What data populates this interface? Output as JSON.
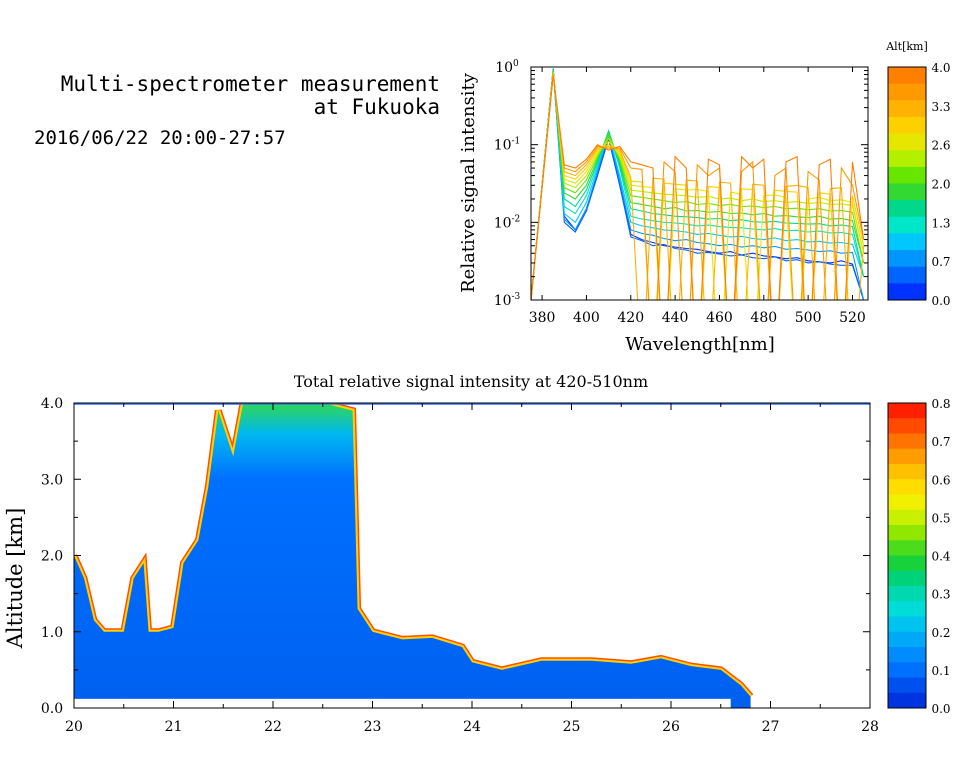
{
  "header": {
    "title_line1": "Multi-spectrometer measurement",
    "title_line2": "at Fukuoka",
    "datetime": "2016/06/22 20:00-27:57"
  },
  "chart_data": [
    {
      "type": "line",
      "title": "",
      "xlabel": "Wavelength[nm]",
      "ylabel": "Relative signal intensity",
      "xlim": [
        375,
        527
      ],
      "ylim": [
        0.001,
        1
      ],
      "yscale": "log",
      "xticks": [
        380,
        400,
        420,
        440,
        460,
        480,
        500,
        520
      ],
      "yticks": [
        {
          "value": 0.001,
          "base": "10",
          "exp": "-3"
        },
        {
          "value": 0.01,
          "base": "10",
          "exp": "-2"
        },
        {
          "value": 0.1,
          "base": "10",
          "exp": "-1"
        },
        {
          "value": 1,
          "base": "10",
          "exp": "0"
        }
      ],
      "colorbar": {
        "label": "Alt[km]",
        "ticks": [
          "4.0",
          "3.3",
          "2.6",
          "2.0",
          "1.3",
          "0.7",
          "0.0"
        ],
        "colors": [
          "#ff7f00",
          "#ff9900",
          "#ffb300",
          "#ffd000",
          "#e6e600",
          "#b3f000",
          "#66e600",
          "#33d933",
          "#00d98c",
          "#00e6c8",
          "#00c8ff",
          "#0096ff",
          "#0064ff",
          "#0032ff"
        ]
      },
      "x": [
        375,
        385,
        390,
        395,
        400,
        405,
        410,
        415,
        420,
        425,
        430,
        435,
        440,
        445,
        450,
        455,
        460,
        465,
        470,
        475,
        480,
        485,
        490,
        495,
        500,
        505,
        510,
        515,
        520,
        525
      ],
      "series": [
        {
          "alt": 0.0,
          "color": "#0032ff",
          "values": [
            0.001,
            0.95,
            0.012,
            0.008,
            0.015,
            0.04,
            0.12,
            0.03,
            0.007,
            0.006,
            0.0055,
            0.005,
            0.0048,
            0.0046,
            0.0045,
            0.0042,
            0.004,
            0.0042,
            0.0038,
            0.004,
            0.0037,
            0.0036,
            0.0034,
            0.0035,
            0.0032,
            0.0031,
            0.003,
            0.0032,
            0.0029,
            0.001
          ]
        },
        {
          "alt": 0.3,
          "color": "#0064ff",
          "values": [
            0.001,
            0.95,
            0.01,
            0.0075,
            0.014,
            0.04,
            0.13,
            0.03,
            0.0065,
            0.0058,
            0.005,
            0.0052,
            0.0046,
            0.0044,
            0.004,
            0.0041,
            0.0039,
            0.0037,
            0.0038,
            0.0035,
            0.0034,
            0.0036,
            0.0032,
            0.0033,
            0.003,
            0.0031,
            0.0029,
            0.0028,
            0.0028,
            0.001
          ]
        },
        {
          "alt": 0.6,
          "color": "#0096ff",
          "values": [
            0.001,
            0.93,
            0.011,
            0.008,
            0.015,
            0.045,
            0.14,
            0.035,
            0.008,
            0.0072,
            0.0068,
            0.0062,
            0.0058,
            0.006,
            0.0055,
            0.0053,
            0.005,
            0.0052,
            0.0048,
            0.005,
            0.0047,
            0.0049,
            0.0045,
            0.0046,
            0.0044,
            0.0042,
            0.0043,
            0.004,
            0.0041,
            0.001
          ]
        },
        {
          "alt": 0.9,
          "color": "#00c8ff",
          "values": [
            0.001,
            0.92,
            0.013,
            0.01,
            0.018,
            0.05,
            0.14,
            0.04,
            0.01,
            0.009,
            0.0085,
            0.008,
            0.0078,
            0.0075,
            0.007,
            0.0072,
            0.0068,
            0.0065,
            0.0066,
            0.0062,
            0.006,
            0.0063,
            0.0058,
            0.006,
            0.0056,
            0.0057,
            0.0054,
            0.0055,
            0.0052,
            0.002
          ]
        },
        {
          "alt": 1.2,
          "color": "#00e6c8",
          "values": [
            0.001,
            0.92,
            0.016,
            0.013,
            0.022,
            0.055,
            0.15,
            0.05,
            0.012,
            0.011,
            0.0105,
            0.01,
            0.0098,
            0.0095,
            0.009,
            0.0092,
            0.0088,
            0.0086,
            0.0085,
            0.0082,
            0.008,
            0.0083,
            0.0078,
            0.0079,
            0.0075,
            0.0077,
            0.0073,
            0.0074,
            0.007,
            0.002
          ]
        },
        {
          "alt": 1.5,
          "color": "#00d98c",
          "values": [
            0.001,
            0.9,
            0.02,
            0.016,
            0.026,
            0.06,
            0.15,
            0.055,
            0.015,
            0.014,
            0.013,
            0.0125,
            0.012,
            0.0118,
            0.0115,
            0.011,
            0.0112,
            0.0105,
            0.0108,
            0.0102,
            0.01,
            0.0103,
            0.0098,
            0.0097,
            0.0095,
            0.0096,
            0.009,
            0.0092,
            0.0088,
            0.002
          ]
        },
        {
          "alt": 1.8,
          "color": "#33d933",
          "values": [
            0.001,
            0.9,
            0.024,
            0.02,
            0.03,
            0.065,
            0.14,
            0.06,
            0.018,
            0.017,
            0.016,
            0.015,
            0.0155,
            0.014,
            0.0142,
            0.0135,
            0.0138,
            0.013,
            0.0132,
            0.0125,
            0.013,
            0.012,
            0.0122,
            0.0118,
            0.0115,
            0.012,
            0.011,
            0.0112,
            0.0105,
            0.003
          ]
        },
        {
          "alt": 2.1,
          "color": "#66e600",
          "values": [
            0.001,
            0.88,
            0.028,
            0.024,
            0.035,
            0.07,
            0.13,
            0.065,
            0.022,
            0.021,
            0.02,
            0.019,
            0.018,
            0.0185,
            0.017,
            0.0175,
            0.0165,
            0.017,
            0.016,
            0.0162,
            0.0155,
            0.016,
            0.015,
            0.0152,
            0.0145,
            0.015,
            0.014,
            0.0142,
            0.0135,
            0.003
          ]
        },
        {
          "alt": 2.4,
          "color": "#b3f000",
          "values": [
            0.001,
            0.86,
            0.032,
            0.028,
            0.04,
            0.075,
            0.12,
            0.07,
            0.026,
            0.025,
            0.024,
            0.023,
            0.0225,
            0.022,
            0.021,
            0.0215,
            0.02,
            0.0205,
            0.019,
            0.02,
            0.0185,
            0.019,
            0.018,
            0.0185,
            0.0175,
            0.018,
            0.017,
            0.0172,
            0.0165,
            0.004
          ]
        },
        {
          "alt": 2.7,
          "color": "#e6e600",
          "values": [
            0.001,
            0.85,
            0.036,
            0.032,
            0.045,
            0.08,
            0.11,
            0.075,
            0.03,
            0.029,
            0.028,
            0.0001,
            0.027,
            0.026,
            0.0265,
            0.025,
            0.0001,
            0.0245,
            0.023,
            0.0001,
            0.022,
            0.0225,
            0.021,
            0.0001,
            0.02,
            0.021,
            0.019,
            0.0195,
            0.018,
            0.004
          ]
        },
        {
          "alt": 3.0,
          "color": "#ffd000",
          "values": [
            0.001,
            0.83,
            0.04,
            0.036,
            0.05,
            0.085,
            0.1,
            0.08,
            0.034,
            0.033,
            0.0001,
            0.032,
            0.031,
            0.03,
            0.0001,
            0.029,
            0.028,
            0.0001,
            0.027,
            0.0265,
            0.0001,
            0.026,
            0.025,
            0.0245,
            0.0001,
            0.024,
            0.023,
            0.0001,
            0.022,
            0.005
          ]
        },
        {
          "alt": 3.3,
          "color": "#ffb300",
          "values": [
            0.001,
            0.82,
            0.045,
            0.04,
            0.055,
            0.09,
            0.095,
            0.085,
            0.038,
            0.0001,
            0.037,
            0.036,
            0.0001,
            0.035,
            0.034,
            0.0001,
            0.033,
            0.032,
            0.0001,
            0.031,
            0.03,
            0.0001,
            0.029,
            0.03,
            0.028,
            0.0001,
            0.027,
            0.028,
            0.0001,
            0.005
          ]
        },
        {
          "alt": 3.6,
          "color": "#ff9900",
          "values": [
            0.001,
            0.8,
            0.05,
            0.045,
            0.06,
            0.095,
            0.09,
            0.09,
            0.05,
            0.048,
            0.0001,
            0.06,
            0.045,
            0.0001,
            0.055,
            0.04,
            0.05,
            0.0001,
            0.045,
            0.06,
            0.0001,
            0.04,
            0.05,
            0.0001,
            0.045,
            0.035,
            0.0001,
            0.05,
            0.03,
            0.006
          ]
        },
        {
          "alt": 3.9,
          "color": "#ff7f00",
          "values": [
            0.001,
            0.78,
            0.055,
            0.05,
            0.065,
            0.1,
            0.085,
            0.095,
            0.06,
            0.055,
            0.05,
            0.0001,
            0.07,
            0.05,
            0.0001,
            0.065,
            0.055,
            0.0001,
            0.07,
            0.05,
            0.065,
            0.0001,
            0.06,
            0.07,
            0.0001,
            0.055,
            0.065,
            0.0001,
            0.06,
            0.006
          ]
        }
      ]
    },
    {
      "type": "heatmap",
      "title": "Total relative signal intensity at 420-510nm",
      "xlabel": "",
      "ylabel": "Altitude [km]",
      "xlim": [
        20,
        28
      ],
      "ylim": [
        0,
        4
      ],
      "xticks": [
        "20",
        "21",
        "22",
        "23",
        "24",
        "25",
        "26",
        "27",
        "28"
      ],
      "yticks": [
        "0.0",
        "1.0",
        "2.0",
        "3.0",
        "4.0"
      ],
      "colorbar": {
        "ticks": [
          "0.8",
          "0.7",
          "0.6",
          "0.5",
          "0.4",
          "0.3",
          "0.2",
          "0.1",
          "0.0"
        ],
        "colors": [
          "#ff2000",
          "#ff4a00",
          "#ff7400",
          "#ff9c00",
          "#ffc000",
          "#ffdd00",
          "#f0f000",
          "#c8f000",
          "#90e800",
          "#4cdc1c",
          "#18d23c",
          "#00d27a",
          "#00d8b0",
          "#00dcd8",
          "#00c4f0",
          "#00a8f8",
          "#008cff",
          "#0070ff",
          "#0050f0",
          "#0034e0"
        ]
      },
      "boundary_km": [
        {
          "t": 20.0,
          "top": 2.0
        },
        {
          "t": 20.1,
          "top": 1.7
        },
        {
          "t": 20.2,
          "top": 1.15
        },
        {
          "t": 20.3,
          "top": 1.0
        },
        {
          "t": 20.4,
          "top": 1.0
        },
        {
          "t": 20.5,
          "top": 1.0
        },
        {
          "t": 20.6,
          "top": 1.7
        },
        {
          "t": 20.7,
          "top": 1.9
        },
        {
          "t": 20.75,
          "top": 1.0
        },
        {
          "t": 20.85,
          "top": 1.0
        },
        {
          "t": 21.0,
          "top": 1.05
        },
        {
          "t": 21.1,
          "top": 1.9
        },
        {
          "t": 21.25,
          "top": 2.2
        },
        {
          "t": 21.35,
          "top": 2.9
        },
        {
          "t": 21.45,
          "top": 3.9
        },
        {
          "t": 21.6,
          "top": 3.3
        },
        {
          "t": 21.7,
          "top": 4.0
        },
        {
          "t": 22.0,
          "top": 4.0
        },
        {
          "t": 22.5,
          "top": 4.0
        },
        {
          "t": 22.8,
          "top": 3.9
        },
        {
          "t": 22.85,
          "top": 1.3
        },
        {
          "t": 23.0,
          "top": 1.0
        },
        {
          "t": 23.3,
          "top": 0.9
        },
        {
          "t": 23.6,
          "top": 0.92
        },
        {
          "t": 23.9,
          "top": 0.8
        },
        {
          "t": 24.0,
          "top": 0.6
        },
        {
          "t": 24.3,
          "top": 0.5
        },
        {
          "t": 24.7,
          "top": 0.62
        },
        {
          "t": 25.2,
          "top": 0.62
        },
        {
          "t": 25.6,
          "top": 0.58
        },
        {
          "t": 25.9,
          "top": 0.65
        },
        {
          "t": 26.2,
          "top": 0.55
        },
        {
          "t": 26.5,
          "top": 0.5
        },
        {
          "t": 26.7,
          "top": 0.3
        },
        {
          "t": 26.8,
          "top": 0.15
        }
      ]
    }
  ]
}
